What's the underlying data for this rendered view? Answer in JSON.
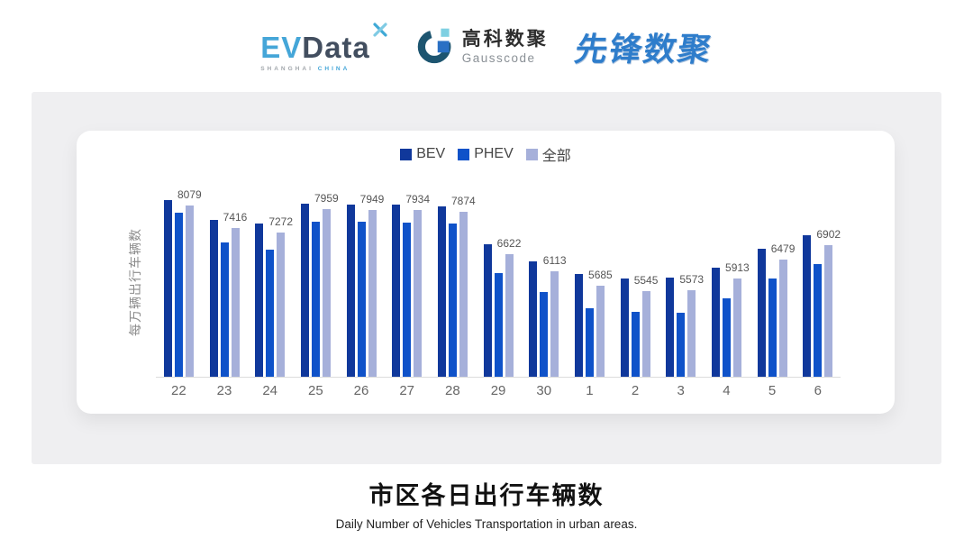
{
  "header": {
    "evdata_logo": {
      "ev": "EV",
      "data": "Data",
      "sub_left": "SHANGHAI",
      "sub_right": "CHINA"
    },
    "gausscode_logo": {
      "cn": "高科数聚",
      "en": "Gausscode"
    },
    "xianfeng_logo": {
      "text": "先锋数聚"
    }
  },
  "chart_data": {
    "type": "bar",
    "title": "市区各日出行车辆数",
    "subtitle": "Daily Number of Vehicles Transportation in urban areas.",
    "ylabel": "每万辆出行车辆数",
    "xlabel": "",
    "categories": [
      "22",
      "23",
      "24",
      "25",
      "26",
      "27",
      "28",
      "29",
      "30",
      "1",
      "2",
      "3",
      "4",
      "5",
      "6"
    ],
    "series": [
      {
        "name": "BEV",
        "color": "#10389b",
        "values": [
          8230,
          7650,
          7540,
          8120,
          8100,
          8110,
          8040,
          6930,
          6430,
          6050,
          5910,
          5930,
          6230,
          6790,
          7200
        ]
      },
      {
        "name": "PHEV",
        "color": "#0f52c9",
        "values": [
          7850,
          6990,
          6760,
          7600,
          7590,
          7580,
          7540,
          6060,
          5510,
          5030,
          4920,
          4910,
          5330,
          5910,
          6340
        ]
      },
      {
        "name": "全部",
        "color": "#a6b0da",
        "values": [
          8079,
          7416,
          7272,
          7959,
          7949,
          7934,
          7874,
          6622,
          6113,
          5685,
          5545,
          5573,
          5913,
          6479,
          6902
        ]
      }
    ],
    "data_labels": [
      8079,
      7416,
      7272,
      7959,
      7949,
      7934,
      7874,
      6622,
      6113,
      5685,
      5545,
      5573,
      5913,
      6479,
      6902
    ],
    "data_label_series": "全部",
    "ylim": [
      3000,
      8500
    ],
    "grid": false,
    "legend_position": "top"
  },
  "colors": {
    "panel_bg": "#efeff1",
    "card_bg": "#ffffff",
    "axis_line": "#dcdcdc",
    "tick_label": "#666666",
    "data_label": "#555555",
    "brand_blue": "#45a6d8",
    "brand_dark": "#424e5f",
    "xianfeng_blue": "#2e7dcb"
  }
}
